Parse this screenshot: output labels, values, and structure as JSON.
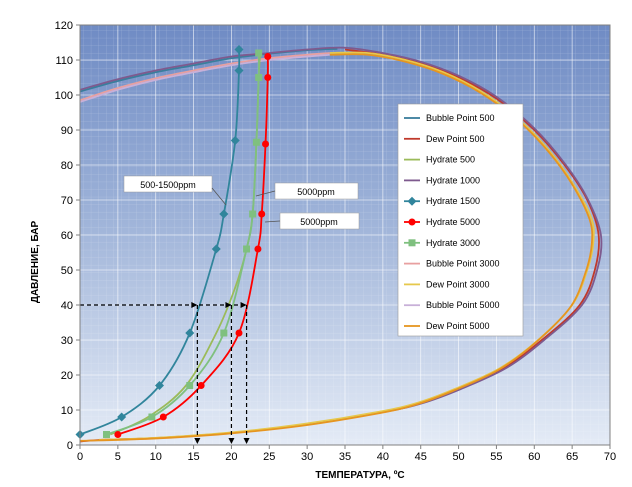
{
  "chart_data": {
    "type": "line",
    "title": "",
    "xlabel": "ТЕМПЕРАТУРА, ºC",
    "ylabel": "ДАВЛЕНИЕ, БАР",
    "xlim": [
      0,
      70
    ],
    "ylim": [
      0,
      120
    ],
    "xticks": [
      "0",
      "5",
      "10",
      "15",
      "20",
      "25",
      "30",
      "35",
      "40",
      "45",
      "50",
      "55",
      "60",
      "65",
      "70"
    ],
    "yticks": [
      "0",
      "10",
      "20",
      "30",
      "40",
      "50",
      "60",
      "70",
      "80",
      "90",
      "100",
      "110",
      "120"
    ],
    "grid": true,
    "legend_position": "right",
    "series": [
      {
        "name": "Bubble Point 500",
        "color": "#3a7e9c",
        "marker": "none",
        "points": [
          [
            0,
            101
          ],
          [
            5,
            104
          ],
          [
            10,
            106.5
          ],
          [
            15,
            108.5
          ],
          [
            20,
            110.5
          ],
          [
            25,
            111.8
          ],
          [
            30,
            112.8
          ],
          [
            34,
            113.2
          ]
        ]
      },
      {
        "name": "Dew Point 500",
        "color": "#c0392b",
        "marker": "none",
        "points": [
          [
            35,
            113
          ],
          [
            40,
            111.5
          ],
          [
            45,
            109
          ],
          [
            50,
            105
          ],
          [
            55,
            99
          ],
          [
            60,
            90
          ],
          [
            64,
            80
          ],
          [
            67,
            70
          ],
          [
            68.5,
            60
          ],
          [
            68,
            50
          ],
          [
            66,
            40
          ],
          [
            61,
            30
          ],
          [
            56,
            22
          ],
          [
            50,
            16
          ],
          [
            45,
            12
          ],
          [
            40,
            9.5
          ],
          [
            30,
            6
          ],
          [
            20,
            3.5
          ],
          [
            10,
            2
          ],
          [
            3,
            1.5
          ],
          [
            0,
            1
          ]
        ]
      },
      {
        "name": "Hydrate 500",
        "color": "#9bbb59",
        "marker": "none",
        "points": [
          [
            4,
            3
          ],
          [
            9,
            8
          ],
          [
            14,
            17
          ],
          [
            18,
            32
          ],
          [
            20.5,
            45
          ],
          [
            22,
            56
          ],
          [
            22.8,
            66
          ],
          [
            23.3,
            86
          ],
          [
            23.6,
            105
          ],
          [
            23.8,
            112
          ]
        ]
      },
      {
        "name": "Hydrate 1000",
        "color": "#7e5a8e",
        "marker": "none",
        "points": [
          [
            0,
            101.5
          ],
          [
            5,
            104.5
          ],
          [
            10,
            107
          ],
          [
            15,
            109
          ],
          [
            20,
            111
          ],
          [
            25,
            112
          ],
          [
            30,
            113
          ],
          [
            35,
            113.5
          ],
          [
            40,
            112
          ],
          [
            45,
            109.5
          ],
          [
            50,
            105.5
          ],
          [
            55,
            99.5
          ],
          [
            60,
            90.5
          ],
          [
            64,
            80.5
          ],
          [
            67,
            70.5
          ],
          [
            68.8,
            60
          ],
          [
            68.3,
            50
          ],
          [
            66.3,
            40
          ],
          [
            61.3,
            30
          ],
          [
            56.3,
            22
          ],
          [
            50.3,
            16
          ],
          [
            45.3,
            12
          ],
          [
            40.3,
            9.5
          ],
          [
            30.3,
            6
          ],
          [
            20.3,
            3.5
          ],
          [
            10.3,
            2
          ],
          [
            3.3,
            1.5
          ]
        ]
      },
      {
        "name": "Hydrate 1500",
        "color": "#31859c",
        "marker": "diamond",
        "points": [
          [
            0,
            3
          ],
          [
            5.5,
            8
          ],
          [
            10.5,
            17
          ],
          [
            14.5,
            32
          ],
          [
            18,
            56
          ],
          [
            19,
            66
          ],
          [
            20.5,
            87
          ],
          [
            21,
            107
          ],
          [
            21,
            113
          ]
        ]
      },
      {
        "name": "Hydrate 5000",
        "color": "#ff0000",
        "marker": "circle",
        "points": [
          [
            5,
            3
          ],
          [
            11,
            8
          ],
          [
            16,
            17
          ],
          [
            21,
            32
          ],
          [
            23.5,
            56
          ],
          [
            24,
            66
          ],
          [
            24.5,
            86
          ],
          [
            24.8,
            105
          ],
          [
            24.8,
            111
          ]
        ]
      },
      {
        "name": "Hydrate 3000",
        "color": "#7fc07f",
        "marker": "square",
        "points": [
          [
            3.5,
            3
          ],
          [
            9.5,
            8
          ],
          [
            14.5,
            17
          ],
          [
            19,
            32
          ],
          [
            22,
            56
          ],
          [
            22.8,
            66
          ],
          [
            23.3,
            86.5
          ],
          [
            23.6,
            105
          ],
          [
            23.6,
            112
          ]
        ]
      },
      {
        "name": "Bubble Point 3000",
        "color": "#e8a0a0",
        "marker": "none",
        "points": [
          [
            0,
            98.5
          ],
          [
            5,
            102
          ],
          [
            10,
            104.8
          ],
          [
            15,
            107
          ],
          [
            20,
            109
          ],
          [
            25,
            110.5
          ],
          [
            30,
            111.5
          ],
          [
            33,
            112
          ]
        ]
      },
      {
        "name": "Dew Point 3000",
        "color": "#e6c84c",
        "marker": "none",
        "points": [
          [
            33,
            112
          ],
          [
            38,
            112
          ],
          [
            43,
            110
          ],
          [
            48,
            106.5
          ],
          [
            53,
            101
          ],
          [
            58,
            93
          ],
          [
            62,
            84
          ],
          [
            65,
            75
          ],
          [
            67.5,
            65
          ],
          [
            67.8,
            58
          ],
          [
            67,
            50
          ],
          [
            65,
            40
          ],
          [
            60.5,
            30
          ],
          [
            55.5,
            22
          ],
          [
            49.5,
            16
          ],
          [
            44.5,
            12
          ],
          [
            39.5,
            9.5
          ],
          [
            29.5,
            6
          ],
          [
            19.5,
            3.5
          ],
          [
            9.5,
            2
          ],
          [
            2.5,
            1.5
          ]
        ]
      },
      {
        "name": "Bubble Point 5000",
        "color": "#c8b0d8",
        "marker": "none",
        "points": [
          [
            0,
            98
          ],
          [
            5,
            101.5
          ],
          [
            10,
            104.3
          ],
          [
            15,
            106.5
          ],
          [
            20,
            108.5
          ],
          [
            25,
            110
          ],
          [
            30,
            111
          ],
          [
            33,
            111.5
          ]
        ]
      },
      {
        "name": "Dew Point 5000",
        "color": "#e69520",
        "marker": "none",
        "points": [
          [
            33,
            111.5
          ],
          [
            38,
            111.5
          ],
          [
            43,
            109.5
          ],
          [
            48,
            106
          ],
          [
            53,
            100.5
          ],
          [
            58,
            92.5
          ],
          [
            62,
            83.5
          ],
          [
            65,
            74.5
          ],
          [
            67.3,
            64.5
          ],
          [
            67.6,
            57.5
          ],
          [
            66.8,
            49.5
          ],
          [
            64.8,
            39.5
          ],
          [
            60.3,
            29.5
          ],
          [
            55.3,
            21.5
          ],
          [
            49.3,
            15.5
          ],
          [
            44.3,
            11.5
          ],
          [
            39.3,
            9
          ],
          [
            29.3,
            5.5
          ],
          [
            19.3,
            3.2
          ],
          [
            9.3,
            1.8
          ],
          [
            0,
            1.2
          ]
        ]
      }
    ],
    "annotations": [
      {
        "text": "500-1500ppm"
      },
      {
        "text": "5000ppm"
      },
      {
        "text": "5000ppm"
      }
    ],
    "guides": {
      "pressure": 40,
      "temperatures": [
        15.5,
        20,
        22
      ]
    }
  }
}
